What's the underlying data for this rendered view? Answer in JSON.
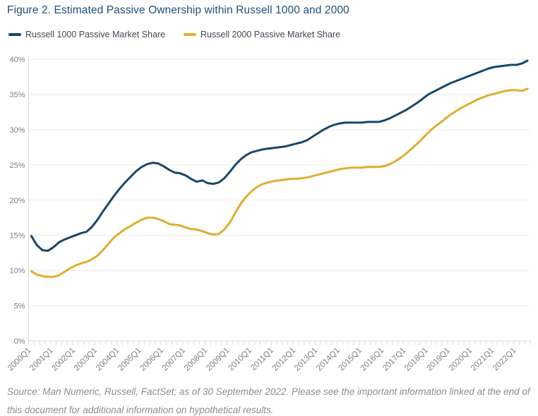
{
  "title": "Figure 2. Estimated Passive Ownership within Russell 1000 and 2000",
  "legend": {
    "items": [
      {
        "label": "Russell 1000 Passive Market Share",
        "color": "#17476B"
      },
      {
        "label": "Russell 2000 Passive Market Share",
        "color": "#DFAE2F"
      }
    ]
  },
  "source_text": "Source: Man Numeric, Russell, FactSet; as of 30 September 2022. Please see the important information linked at the end of this document for additional information on hypothetical results.",
  "colors": {
    "title": "#1F4E79",
    "axis_label": "#7F7F7F",
    "gridline": "#ECECEC",
    "axis_line": "#D9D9D9",
    "tick": "#DCDCDC",
    "source": "#8C8C8C"
  },
  "chart_data": {
    "type": "line",
    "title": "Figure 2. Estimated Passive Ownership within Russell 1000 and 2000",
    "xlabel": "",
    "ylabel": "",
    "x_start": "2000Q1",
    "x_end": "2022Q3",
    "frequency": "quarterly",
    "x_tick_labels": [
      "2000Q1",
      "2001Q1",
      "2002Q1",
      "2003Q1",
      "2004Q1",
      "2005Q1",
      "2006Q1",
      "2007Q1",
      "2008Q1",
      "2009Q1",
      "2010Q1",
      "2011Q1",
      "2012Q1",
      "2013Q1",
      "2014Q1",
      "2015Q1",
      "2016Q1",
      "2017Q1",
      "2018Q1",
      "2019Q1",
      "2020Q1",
      "2021Q1",
      "2022Q1"
    ],
    "ylim": [
      0,
      40
    ],
    "y_tick_step": 5,
    "y_tick_labels": [
      "0%",
      "5%",
      "10%",
      "15%",
      "20%",
      "25%",
      "30%",
      "35%",
      "40%"
    ],
    "grid": "horizontal",
    "legend_position": "top-left",
    "series": [
      {
        "name": "Russell 1000 Passive Market Share",
        "color": "#17476B",
        "values": [
          14.9,
          13.6,
          12.9,
          12.8,
          13.3,
          14.0,
          14.4,
          14.7,
          15.0,
          15.3,
          15.5,
          16.2,
          17.2,
          18.4,
          19.5,
          20.6,
          21.6,
          22.5,
          23.3,
          24.1,
          24.7,
          25.1,
          25.3,
          25.2,
          24.8,
          24.3,
          23.9,
          23.8,
          23.5,
          23.0,
          22.6,
          22.8,
          22.4,
          22.3,
          22.5,
          23.1,
          24.0,
          25.0,
          25.8,
          26.4,
          26.8,
          27.0,
          27.2,
          27.3,
          27.4,
          27.5,
          27.6,
          27.8,
          28.0,
          28.2,
          28.5,
          29.0,
          29.5,
          30.0,
          30.4,
          30.7,
          30.9,
          31.0,
          31.0,
          31.0,
          31.0,
          31.1,
          31.1,
          31.1,
          31.3,
          31.6,
          32.0,
          32.4,
          32.8,
          33.3,
          33.8,
          34.4,
          35.0,
          35.4,
          35.8,
          36.2,
          36.6,
          36.9,
          37.2,
          37.5,
          37.8,
          38.1,
          38.4,
          38.7,
          38.9,
          39.0,
          39.1,
          39.2,
          39.2,
          39.4,
          39.8
        ]
      },
      {
        "name": "Russell 2000 Passive Market Share",
        "color": "#DFAE2F",
        "values": [
          9.9,
          9.4,
          9.2,
          9.1,
          9.1,
          9.3,
          9.8,
          10.3,
          10.7,
          11.0,
          11.2,
          11.6,
          12.1,
          12.9,
          13.8,
          14.7,
          15.3,
          15.9,
          16.3,
          16.8,
          17.2,
          17.5,
          17.5,
          17.3,
          17.0,
          16.6,
          16.5,
          16.4,
          16.1,
          15.9,
          15.8,
          15.6,
          15.3,
          15.1,
          15.2,
          15.8,
          16.8,
          18.2,
          19.5,
          20.5,
          21.3,
          21.9,
          22.3,
          22.5,
          22.7,
          22.8,
          22.9,
          23.0,
          23.0,
          23.1,
          23.2,
          23.4,
          23.6,
          23.8,
          24.0,
          24.2,
          24.4,
          24.5,
          24.6,
          24.6,
          24.6,
          24.7,
          24.7,
          24.7,
          24.8,
          25.1,
          25.5,
          26.0,
          26.6,
          27.3,
          28.0,
          28.8,
          29.6,
          30.3,
          30.9,
          31.5,
          32.1,
          32.6,
          33.1,
          33.5,
          33.9,
          34.3,
          34.6,
          34.9,
          35.1,
          35.3,
          35.5,
          35.6,
          35.6,
          35.5,
          35.8
        ]
      }
    ]
  }
}
